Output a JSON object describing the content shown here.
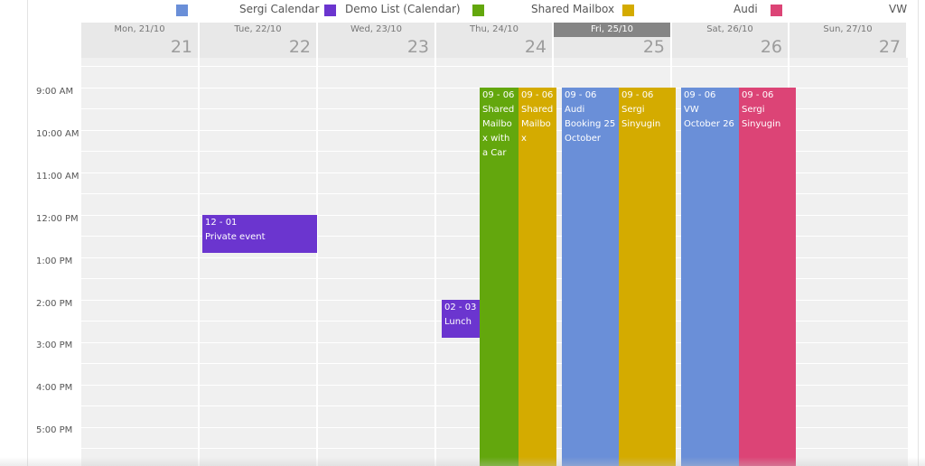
{
  "legend": [
    {
      "label": "Sergi Calendar",
      "color": "#6a8fd8"
    },
    {
      "label": "Demo List (Calendar)",
      "color": "#6b35cf"
    },
    {
      "label": "Shared Mailbox",
      "color": "#63a70d"
    },
    {
      "label": "Audi",
      "color": "#d4ab00"
    },
    {
      "label": "VW",
      "color": "#dc4476"
    }
  ],
  "days": [
    {
      "name": "Mon, 21/10",
      "num": "21"
    },
    {
      "name": "Tue, 22/10",
      "num": "22"
    },
    {
      "name": "Wed, 23/10",
      "num": "23"
    },
    {
      "name": "Thu, 24/10",
      "num": "24"
    },
    {
      "name": "Fri, 25/10",
      "num": "25",
      "today": true
    },
    {
      "name": "Sat, 26/10",
      "num": "26"
    },
    {
      "name": "Sun, 27/10",
      "num": "27"
    }
  ],
  "times": [
    "9:00 AM",
    "10:00 AM",
    "11:00 AM",
    "12:00 PM",
    "1:00 PM",
    "2:00 PM",
    "3:00 PM",
    "4:00 PM",
    "5:00 PM"
  ],
  "events": [
    {
      "time": "12 - 01",
      "name": "Private event",
      "color": "#6b35cf"
    },
    {
      "time": "02 - 03",
      "name": "Lunch",
      "color": "#6b35cf"
    },
    {
      "time": "09 - 06",
      "name": "Shared Mailbox with a Car",
      "color": "#63a70d"
    },
    {
      "time": "09 - 06",
      "name": "Shared Mailbox",
      "color": "#d4ab00"
    },
    {
      "time": "09 - 06",
      "name": "Audi Booking 25 October",
      "color": "#6a8fd8"
    },
    {
      "time": "09 - 06",
      "name": "Sergi Sinyugin",
      "color": "#d4ab00"
    },
    {
      "time": "09 - 06",
      "name": "VW October 26",
      "color": "#6a8fd8"
    },
    {
      "time": "09 - 06",
      "name": "Sergi Sinyugin",
      "color": "#dc4476"
    }
  ]
}
